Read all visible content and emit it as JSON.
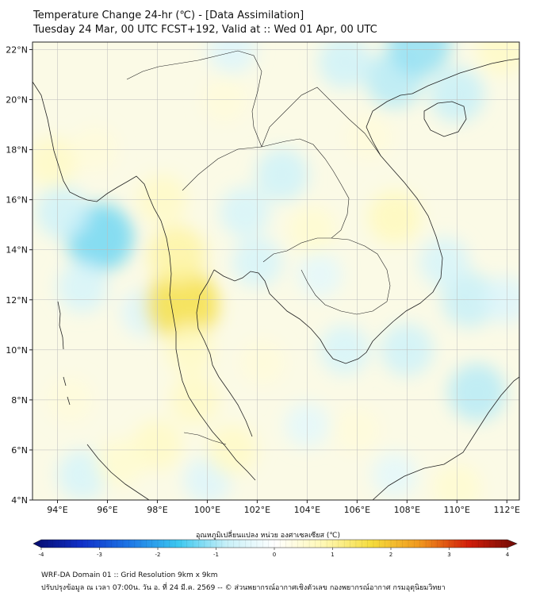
{
  "title": {
    "line1": "Temperature Change 24-hr (℃) - [Data Assimilation]",
    "line2": "Tuesday 24 Mar, 00 UTC FCST+192, Valid at :: Wed 01 Apr, 00 UTC"
  },
  "map": {
    "lat_labels": [
      "22°N",
      "20°N",
      "18°N",
      "16°N",
      "14°N",
      "12°N",
      "10°N",
      "8°N",
      "6°N",
      "4°N"
    ],
    "lon_labels": [
      "94°E",
      "96°E",
      "98°E",
      "100°E",
      "102°E",
      "104°E",
      "106°E",
      "108°E",
      "110°E",
      "112°E"
    ],
    "lat_range": [
      4,
      22.3
    ],
    "lon_range": [
      93,
      112.5
    ],
    "field_anomalies": [
      {
        "lon": 95.7,
        "lat": 14.5,
        "value": -1.3
      },
      {
        "lon": 94.2,
        "lat": 15.5,
        "value": -0.7
      },
      {
        "lon": 95.0,
        "lat": 12.5,
        "value": -0.6
      },
      {
        "lon": 97.5,
        "lat": 11.5,
        "value": -0.5
      },
      {
        "lon": 103.0,
        "lat": 17.0,
        "value": -0.7
      },
      {
        "lon": 101.5,
        "lat": 15.5,
        "value": -0.6
      },
      {
        "lon": 102.0,
        "lat": 13.5,
        "value": -0.6
      },
      {
        "lon": 104.5,
        "lat": 13.0,
        "value": -0.4
      },
      {
        "lon": 105.5,
        "lat": 10.0,
        "value": -0.6
      },
      {
        "lon": 108.0,
        "lat": 10.0,
        "value": -0.7
      },
      {
        "lon": 110.8,
        "lat": 8.3,
        "value": -0.9
      },
      {
        "lon": 110.5,
        "lat": 12.0,
        "value": -0.8
      },
      {
        "lon": 109.5,
        "lat": 13.5,
        "value": -0.6
      },
      {
        "lon": 107.5,
        "lat": 20.8,
        "value": -0.9
      },
      {
        "lon": 105.5,
        "lat": 21.5,
        "value": -0.7
      },
      {
        "lon": 110.0,
        "lat": 20.2,
        "value": -0.8
      },
      {
        "lon": 108.5,
        "lat": 22.2,
        "value": -1.1
      },
      {
        "lon": 101.0,
        "lat": 22.0,
        "value": -0.5
      },
      {
        "lon": 95.0,
        "lat": 5.0,
        "value": -0.6
      },
      {
        "lon": 100.0,
        "lat": 4.8,
        "value": -0.5
      },
      {
        "lon": 104.0,
        "lat": 7.0,
        "value": -0.4
      },
      {
        "lon": 107.5,
        "lat": 5.0,
        "value": -0.4
      },
      {
        "lon": 112.0,
        "lat": 12.0,
        "value": -0.5
      },
      {
        "lon": 99.0,
        "lat": 11.8,
        "value": 1.5
      },
      {
        "lon": 98.8,
        "lat": 13.8,
        "value": 0.9
      },
      {
        "lon": 99.3,
        "lat": 10.0,
        "value": 0.6
      },
      {
        "lon": 98.2,
        "lat": 16.0,
        "value": 0.6
      },
      {
        "lon": 99.5,
        "lat": 8.0,
        "value": 0.6
      },
      {
        "lon": 101.0,
        "lat": 6.0,
        "value": 0.6
      },
      {
        "lon": 98.0,
        "lat": 6.2,
        "value": 0.6
      },
      {
        "lon": 93.8,
        "lat": 17.5,
        "value": 0.6
      },
      {
        "lon": 95.5,
        "lat": 18.0,
        "value": 0.4
      },
      {
        "lon": 107.5,
        "lat": 15.3,
        "value": 0.7
      },
      {
        "lon": 106.5,
        "lat": 18.5,
        "value": 0.4
      },
      {
        "lon": 104.2,
        "lat": 14.8,
        "value": 0.5
      },
      {
        "lon": 100.7,
        "lat": 20.0,
        "value": 0.4
      },
      {
        "lon": 102.2,
        "lat": 9.5,
        "value": 0.4
      },
      {
        "lon": 111.8,
        "lat": 22.0,
        "value": 0.6
      },
      {
        "lon": 106.0,
        "lat": 6.8,
        "value": 0.4
      },
      {
        "lon": 110.0,
        "lat": 4.5,
        "value": 0.5
      },
      {
        "lon": 94.5,
        "lat": 8.0,
        "value": 0.4
      },
      {
        "lon": 96.5,
        "lat": 5.5,
        "value": 0.5
      }
    ]
  },
  "colorbar": {
    "label": "อุณหภูมิเปลี่ยนแปลง หน่วย องศาเซลเซียส (℃)",
    "ticks": [
      "-4",
      "-3",
      "-2",
      "-1",
      "0",
      "1",
      "2",
      "3",
      "4"
    ],
    "range": [
      -4,
      4
    ],
    "colors": [
      "#050a6e",
      "#1030c8",
      "#1e78e6",
      "#3cc8f0",
      "#c8f0f8",
      "#ffffff",
      "#fff8b4",
      "#f5dc3c",
      "#f0961e",
      "#d21e0a",
      "#6e0a05"
    ]
  },
  "footer": {
    "line1": "WRF-DA Domain 01 :: Grid Resolution 9km x 9km",
    "line2": "ปรับปรุงข้อมูล ณ เวลา 07:00น. วัน อ. ที่ 24 มี.ค. 2569 -- © ส่วนพยากรณ์อากาศเชิงตัวเลข กองพยากรณ์อากาศ กรมอุตุนิยมวิทยา"
  }
}
